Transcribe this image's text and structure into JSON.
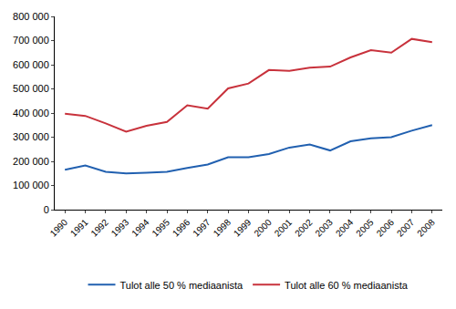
{
  "chart_data": {
    "type": "line",
    "categories": [
      "1990",
      "1991",
      "1992",
      "1993",
      "1994",
      "1995",
      "1996",
      "1997",
      "1998",
      "1999",
      "2000",
      "2001",
      "2002",
      "2003",
      "2004",
      "2005",
      "2006",
      "2007",
      "2008"
    ],
    "series": [
      {
        "name": "Tulot alle 50 % mediaanista",
        "color": "#2160b0",
        "values": [
          165000,
          183000,
          157000,
          150000,
          153000,
          157000,
          173000,
          187000,
          217000,
          217000,
          230000,
          257000,
          270000,
          245000,
          283000,
          295000,
          300000,
          327000,
          350000
        ]
      },
      {
        "name": "Tulot alle 60 % mediaanista",
        "color": "#c8323c",
        "values": [
          397000,
          388000,
          357000,
          323000,
          347000,
          363000,
          432000,
          418000,
          502000,
          522000,
          578000,
          575000,
          588000,
          592000,
          630000,
          660000,
          650000,
          707000,
          693000
        ]
      }
    ],
    "ylim": [
      0,
      800000
    ],
    "yticks": [
      0,
      {
        "value": 100000,
        "label": "100 000"
      },
      {
        "value": 200000,
        "label": "200 000"
      },
      {
        "value": 300000,
        "label": "300 000"
      },
      {
        "value": 400000,
        "label": "400 000"
      },
      {
        "value": 500000,
        "label": "500 000"
      },
      {
        "value": 600000,
        "label": "600 000"
      },
      {
        "value": 700000,
        "label": "700 000"
      },
      {
        "value": 800000,
        "label": "800 000"
      }
    ],
    "grid": false,
    "legend": "bottom"
  }
}
